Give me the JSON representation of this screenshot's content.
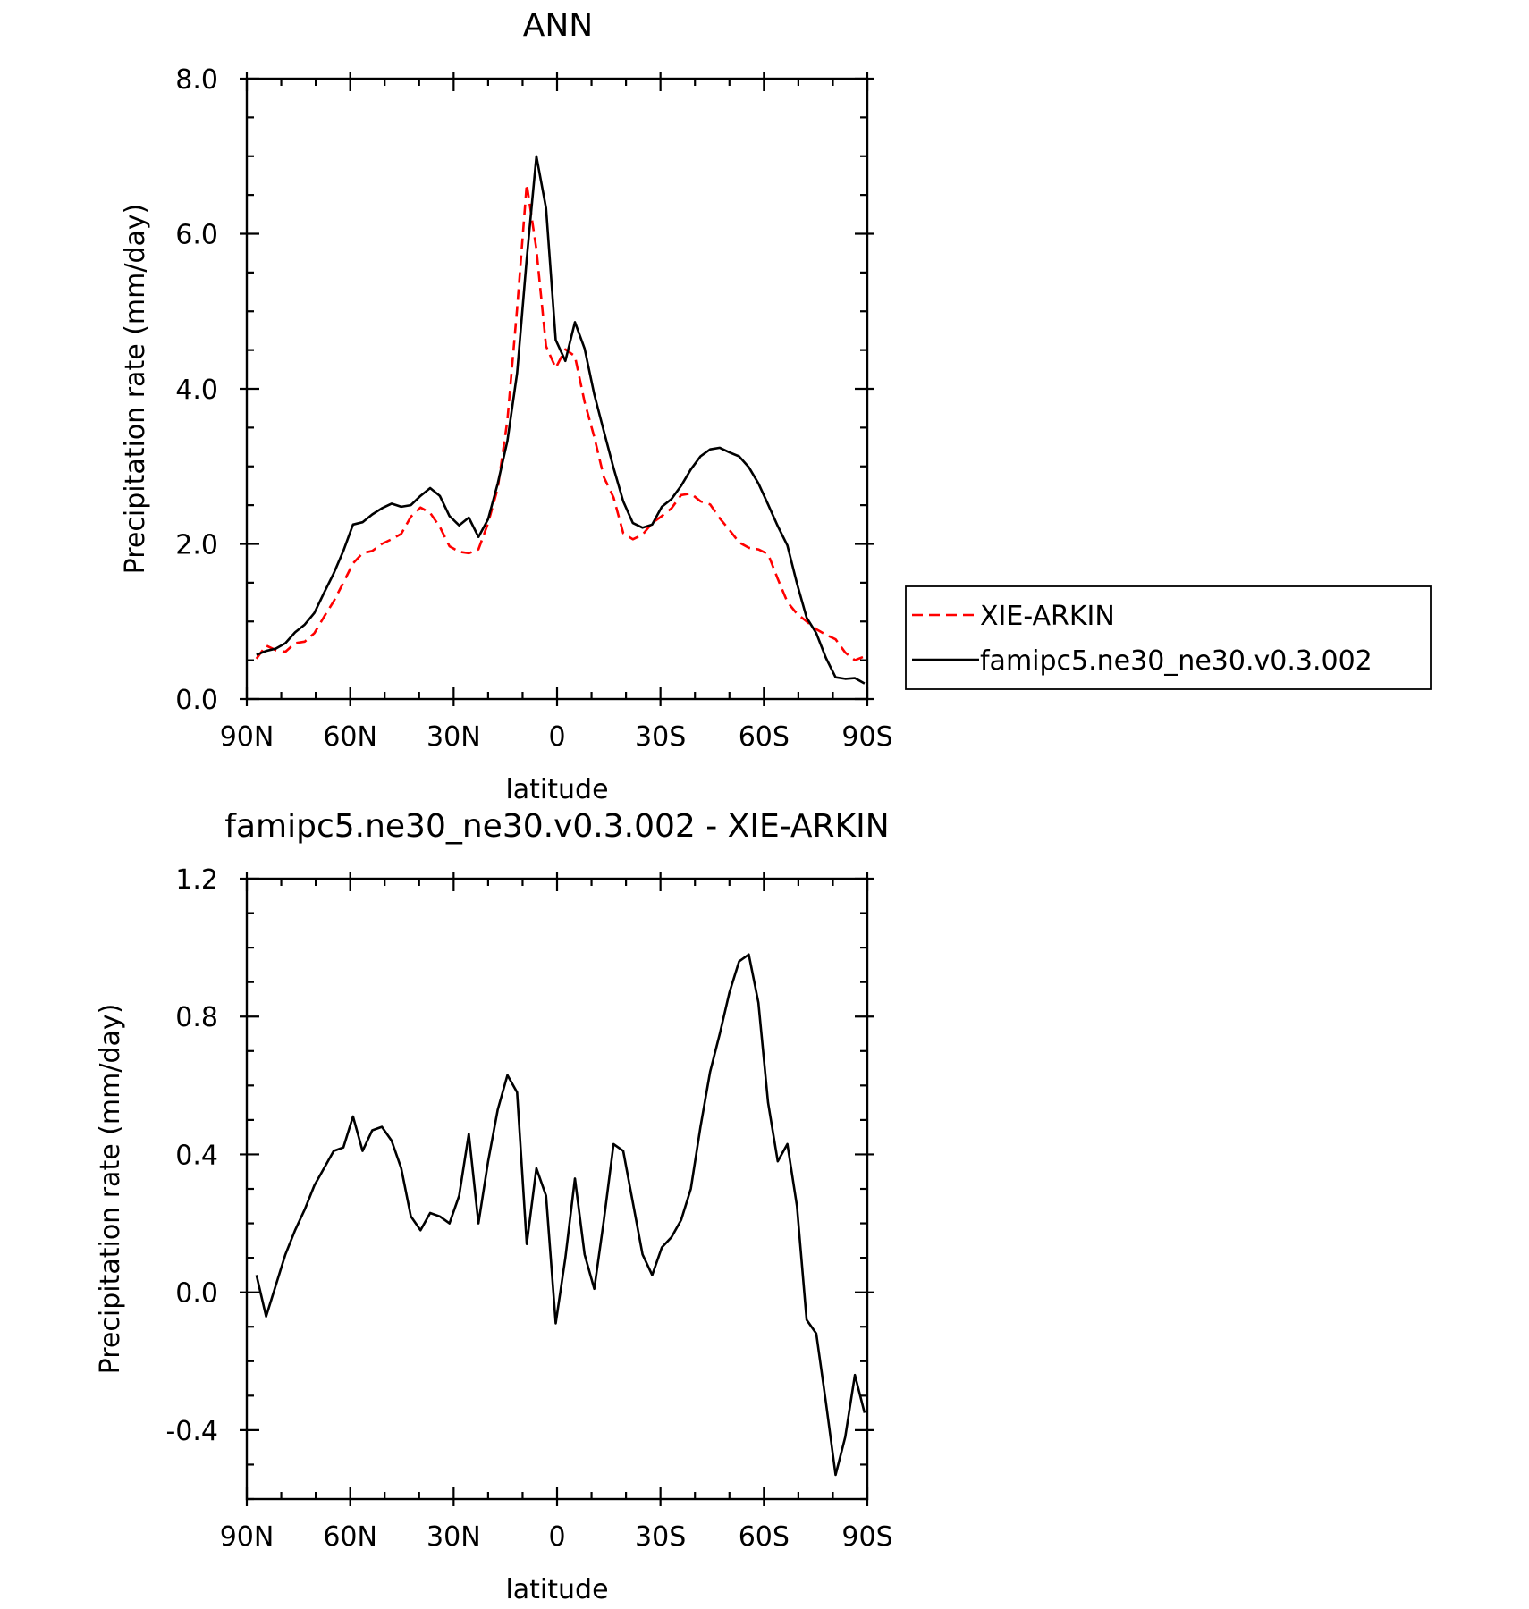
{
  "chart_data": [
    {
      "type": "line",
      "title": "ANN",
      "xlabel": "latitude",
      "ylabel": "Precipitation rate (mm/day)",
      "xlim": [
        90,
        -90
      ],
      "ylim": [
        0,
        8
      ],
      "xticks": [
        90,
        60,
        30,
        0,
        -30,
        -60,
        -90
      ],
      "xtick_labels": [
        "90N",
        "60N",
        "30N",
        "0",
        "30S",
        "60S",
        "90S"
      ],
      "yticks": [
        0,
        2,
        4,
        6,
        8
      ],
      "ytick_labels": [
        "0.0",
        "2.0",
        "4.0",
        "6.0",
        "8.0"
      ],
      "legend_position": "right",
      "x": [
        87.2,
        84.4,
        81.6,
        78.8,
        76.0,
        73.2,
        70.4,
        67.6,
        64.8,
        62.0,
        59.2,
        56.4,
        53.6,
        50.8,
        48.0,
        45.2,
        42.4,
        39.6,
        36.8,
        34.0,
        31.2,
        28.4,
        25.6,
        22.8,
        20.0,
        17.2,
        14.4,
        11.6,
        8.8,
        6.0,
        3.2,
        0.4,
        -2.4,
        -5.2,
        -8.0,
        -10.8,
        -13.6,
        -16.4,
        -19.2,
        -22.0,
        -24.8,
        -27.6,
        -30.4,
        -33.2,
        -36.0,
        -38.8,
        -41.6,
        -44.4,
        -47.2,
        -50.0,
        -52.8,
        -55.6,
        -58.4,
        -61.2,
        -64.0,
        -66.8,
        -69.6,
        -72.4,
        -75.2,
        -78.0,
        -80.8,
        -83.6,
        -86.4,
        -89.2
      ],
      "series": [
        {
          "name": "XIE-ARKIN",
          "color": "#ff0000",
          "dash": "dashed",
          "values": [
            0.52,
            0.69,
            0.63,
            0.61,
            0.72,
            0.74,
            0.85,
            1.06,
            1.26,
            1.5,
            1.75,
            1.88,
            1.91,
            2.0,
            2.06,
            2.13,
            2.35,
            2.47,
            2.4,
            2.22,
            1.97,
            1.9,
            1.88,
            1.93,
            2.27,
            2.72,
            3.6,
            5.03,
            6.64,
            5.8,
            4.55,
            4.27,
            4.51,
            4.42,
            3.83,
            3.38,
            2.86,
            2.6,
            2.14,
            2.06,
            2.12,
            2.27,
            2.36,
            2.46,
            2.63,
            2.65,
            2.55,
            2.51,
            2.33,
            2.18,
            2.02,
            1.95,
            1.93,
            1.87,
            1.55,
            1.25,
            1.1,
            1.0,
            0.9,
            0.83,
            0.77,
            0.6,
            0.5,
            0.55
          ]
        },
        {
          "name": "famipc5.ne30_ne30.v0.3.002",
          "color": "#000000",
          "dash": "solid",
          "values": [
            0.57,
            0.62,
            0.65,
            0.72,
            0.86,
            0.96,
            1.11,
            1.37,
            1.62,
            1.91,
            2.25,
            2.28,
            2.38,
            2.46,
            2.52,
            2.48,
            2.5,
            2.62,
            2.72,
            2.62,
            2.36,
            2.24,
            2.34,
            2.09,
            2.32,
            2.78,
            3.33,
            4.2,
            5.68,
            7.0,
            6.33,
            4.63,
            4.36,
            4.86,
            4.52,
            3.93,
            3.45,
            2.98,
            2.55,
            2.27,
            2.21,
            2.25,
            2.48,
            2.58,
            2.75,
            2.96,
            3.13,
            3.22,
            3.24,
            3.18,
            3.13,
            2.99,
            2.78,
            2.51,
            2.23,
            1.98,
            1.49,
            1.05,
            0.85,
            0.53,
            0.28,
            0.26,
            0.27,
            0.2
          ]
        }
      ]
    },
    {
      "type": "line",
      "title": "famipc5.ne30_ne30.v0.3.002 - XIE-ARKIN",
      "xlabel": "latitude",
      "ylabel": "Precipitation rate (mm/day)",
      "xlim": [
        90,
        -90
      ],
      "ylim": [
        -0.6,
        1.2
      ],
      "xticks": [
        90,
        60,
        30,
        0,
        -30,
        -60,
        -90
      ],
      "xtick_labels": [
        "90N",
        "60N",
        "30N",
        "0",
        "30S",
        "60S",
        "90S"
      ],
      "yticks": [
        -0.4,
        0.0,
        0.4,
        0.8,
        1.2
      ],
      "ytick_labels": [
        "-0.4",
        "0.0",
        "0.4",
        "0.8",
        "1.2"
      ],
      "x": [
        87.2,
        84.4,
        81.6,
        78.8,
        76.0,
        73.2,
        70.4,
        67.6,
        64.8,
        62.0,
        59.2,
        56.4,
        53.6,
        50.8,
        48.0,
        45.2,
        42.4,
        39.6,
        36.8,
        34.0,
        31.2,
        28.4,
        25.6,
        22.8,
        20.0,
        17.2,
        14.4,
        11.6,
        8.8,
        6.0,
        3.2,
        0.4,
        -2.4,
        -5.2,
        -8.0,
        -10.8,
        -13.6,
        -16.4,
        -19.2,
        -22.0,
        -24.8,
        -27.6,
        -30.4,
        -33.2,
        -36.0,
        -38.8,
        -41.6,
        -44.4,
        -47.2,
        -50.0,
        -52.8,
        -55.6,
        -58.4,
        -61.2,
        -64.0,
        -66.8,
        -69.6,
        -72.4,
        -75.2,
        -78.0,
        -80.8,
        -83.6,
        -86.4,
        -89.2
      ],
      "series": [
        {
          "color": "#000000",
          "values": [
            0.05,
            -0.07,
            0.02,
            0.11,
            0.18,
            0.24,
            0.31,
            0.36,
            0.41,
            0.42,
            0.51,
            0.41,
            0.47,
            0.48,
            0.44,
            0.36,
            0.22,
            0.18,
            0.23,
            0.22,
            0.2,
            0.28,
            0.46,
            0.2,
            0.38,
            0.53,
            0.63,
            0.58,
            0.14,
            0.36,
            0.28,
            -0.09,
            0.1,
            0.33,
            0.11,
            0.01,
            0.21,
            0.43,
            0.41,
            0.26,
            0.11,
            0.05,
            0.13,
            0.16,
            0.21,
            0.3,
            0.48,
            0.64,
            0.75,
            0.87,
            0.96,
            0.98,
            0.84,
            0.55,
            0.38,
            0.43,
            0.25,
            -0.08,
            -0.12,
            -0.32,
            -0.53,
            -0.42,
            -0.24,
            -0.35
          ]
        }
      ]
    }
  ]
}
